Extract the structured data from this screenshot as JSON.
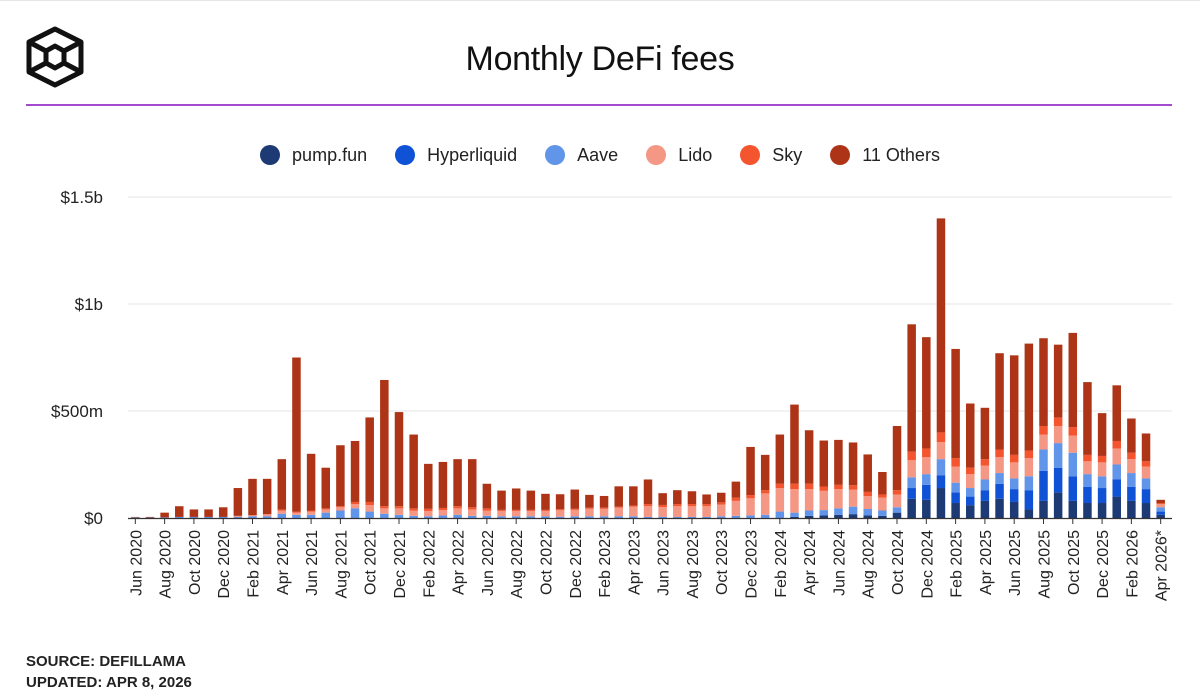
{
  "header": {
    "title": "Monthly DeFi fees",
    "logo_icon": "cube-logo-icon"
  },
  "footer": {
    "source": "SOURCE: DEFILLAMA",
    "updated": "UPDATED: APR 8, 2026"
  },
  "chart_data": {
    "type": "bar",
    "stacked": true,
    "title": "Monthly DeFi fees",
    "xlabel": "",
    "ylabel": "",
    "ylim": [
      0,
      1500
    ],
    "y_unit": "millions USD",
    "y_ticks": [
      {
        "value": 0,
        "label": "$0"
      },
      {
        "value": 500,
        "label": "$500m"
      },
      {
        "value": 1000,
        "label": "$1b"
      },
      {
        "value": 1500,
        "label": "$1.5b"
      }
    ],
    "grid": true,
    "legend_position": "top-center",
    "x_tick_labels": [
      "Jun 2020",
      "Aug 2020",
      "Oct 2020",
      "Dec 2020",
      "Feb 2021",
      "Apr 2021",
      "Jun 2021",
      "Aug 2021",
      "Oct 2021",
      "Dec 2021",
      "Feb 2022",
      "Apr 2022",
      "Jun 2022",
      "Aug 2022",
      "Oct 2022",
      "Dec 2022",
      "Feb 2023",
      "Apr 2023",
      "Jun 2023",
      "Aug 2023",
      "Oct 2023",
      "Dec 2023",
      "Feb 2024",
      "Apr 2024",
      "Jun 2024",
      "Aug 2024",
      "Oct 2024",
      "Dec 2024",
      "Feb 2025",
      "Apr 2025",
      "Jun 2025",
      "Aug 2025",
      "Oct 2025",
      "Dec 2025",
      "Feb 2026",
      "Apr 2026*"
    ],
    "categories": [
      "Jun 2020",
      "Jul 2020",
      "Aug 2020",
      "Sep 2020",
      "Oct 2020",
      "Nov 2020",
      "Dec 2020",
      "Jan 2021",
      "Feb 2021",
      "Mar 2021",
      "Apr 2021",
      "May 2021",
      "Jun 2021",
      "Jul 2021",
      "Aug 2021",
      "Sep 2021",
      "Oct 2021",
      "Nov 2021",
      "Dec 2021",
      "Jan 2022",
      "Feb 2022",
      "Mar 2022",
      "Apr 2022",
      "May 2022",
      "Jun 2022",
      "Jul 2022",
      "Aug 2022",
      "Sep 2022",
      "Oct 2022",
      "Nov 2022",
      "Dec 2022",
      "Jan 2023",
      "Feb 2023",
      "Mar 2023",
      "Apr 2023",
      "May 2023",
      "Jun 2023",
      "Jul 2023",
      "Aug 2023",
      "Sep 2023",
      "Oct 2023",
      "Nov 2023",
      "Dec 2023",
      "Jan 2024",
      "Feb 2024",
      "Mar 2024",
      "Apr 2024",
      "May 2024",
      "Jun 2024",
      "Jul 2024",
      "Aug 2024",
      "Sep 2024",
      "Oct 2024",
      "Nov 2024",
      "Dec 2024",
      "Jan 2025",
      "Feb 2025",
      "Mar 2025",
      "Apr 2025",
      "May 2025",
      "Jun 2025",
      "Jul 2025",
      "Aug 2025",
      "Sep 2025",
      "Oct 2025",
      "Nov 2025",
      "Dec 2025",
      "Jan 2026",
      "Feb 2026",
      "Mar 2026",
      "Apr 2026*"
    ],
    "series": [
      {
        "name": "pump.fun",
        "color": "#1d3a75",
        "values": [
          0,
          0,
          0,
          0,
          0,
          0,
          0,
          0,
          0,
          0,
          0,
          0,
          0,
          0,
          0,
          0,
          0,
          0,
          0,
          0,
          0,
          0,
          0,
          0,
          0,
          0,
          0,
          0,
          0,
          0,
          0,
          0,
          0,
          0,
          0,
          0,
          0,
          0,
          0,
          0,
          0,
          0,
          0,
          0,
          0,
          5,
          10,
          12,
          15,
          18,
          12,
          10,
          25,
          90,
          85,
          140,
          70,
          60,
          80,
          90,
          75,
          40,
          80,
          120,
          80,
          70,
          70,
          100,
          80,
          70,
          15
        ]
      },
      {
        "name": "Hyperliquid",
        "color": "#0f52d6",
        "values": [
          0,
          0,
          0,
          0,
          0,
          0,
          0,
          0,
          0,
          0,
          0,
          0,
          0,
          0,
          0,
          0,
          0,
          0,
          0,
          0,
          0,
          0,
          0,
          0,
          0,
          0,
          0,
          0,
          0,
          0,
          0,
          0,
          0,
          0,
          0,
          0,
          0,
          0,
          0,
          0,
          0,
          0,
          0,
          0,
          0,
          0,
          0,
          0,
          0,
          0,
          0,
          0,
          0,
          50,
          70,
          60,
          50,
          40,
          50,
          70,
          60,
          90,
          140,
          115,
          115,
          75,
          70,
          80,
          65,
          65,
          15
        ]
      },
      {
        "name": "Aave",
        "color": "#6195ea",
        "values": [
          3,
          2,
          3,
          5,
          5,
          5,
          5,
          5,
          8,
          8,
          20,
          15,
          15,
          25,
          35,
          45,
          30,
          20,
          15,
          10,
          8,
          12,
          15,
          10,
          10,
          8,
          8,
          8,
          8,
          6,
          8,
          8,
          8,
          8,
          8,
          5,
          6,
          5,
          5,
          5,
          8,
          10,
          12,
          15,
          30,
          20,
          25,
          25,
          30,
          35,
          30,
          25,
          25,
          50,
          50,
          75,
          45,
          40,
          50,
          50,
          50,
          65,
          100,
          115,
          110,
          60,
          55,
          70,
          65,
          50,
          20
        ]
      },
      {
        "name": "Lido",
        "color": "#f49784",
        "values": [
          0,
          0,
          0,
          0,
          0,
          0,
          0,
          5,
          5,
          10,
          15,
          10,
          15,
          15,
          15,
          20,
          30,
          25,
          30,
          25,
          25,
          25,
          30,
          30,
          25,
          25,
          25,
          25,
          25,
          30,
          30,
          35,
          35,
          40,
          45,
          50,
          45,
          50,
          50,
          50,
          55,
          70,
          80,
          100,
          110,
          110,
          100,
          90,
          90,
          80,
          60,
          60,
          60,
          80,
          80,
          80,
          75,
          65,
          65,
          75,
          75,
          85,
          70,
          80,
          80,
          60,
          65,
          75,
          65,
          55,
          15
        ]
      },
      {
        "name": "Sky",
        "color": "#f4552e",
        "values": [
          0,
          0,
          0,
          0,
          0,
          0,
          0,
          0,
          0,
          0,
          5,
          5,
          5,
          5,
          5,
          10,
          15,
          10,
          10,
          10,
          10,
          10,
          10,
          10,
          10,
          5,
          5,
          5,
          5,
          5,
          5,
          5,
          5,
          5,
          5,
          10,
          10,
          10,
          10,
          10,
          10,
          15,
          15,
          15,
          20,
          25,
          25,
          20,
          20,
          20,
          20,
          15,
          20,
          40,
          40,
          45,
          40,
          30,
          30,
          35,
          35,
          35,
          40,
          40,
          40,
          30,
          30,
          35,
          30,
          25,
          5
        ]
      },
      {
        "name": "11 Others",
        "color": "#ad3416",
        "values": [
          2,
          3,
          22,
          50,
          35,
          35,
          45,
          130,
          170,
          165,
          235,
          720,
          265,
          190,
          285,
          285,
          395,
          590,
          440,
          345,
          210,
          215,
          220,
          225,
          115,
          90,
          100,
          90,
          75,
          70,
          90,
          60,
          55,
          95,
          90,
          115,
          55,
          65,
          60,
          45,
          45,
          75,
          225,
          165,
          230,
          370,
          250,
          215,
          210,
          200,
          175,
          105,
          300,
          595,
          520,
          1000,
          510,
          300,
          240,
          450,
          465,
          500,
          410,
          340,
          440,
          340,
          200,
          260,
          160,
          130,
          15
        ]
      }
    ]
  }
}
